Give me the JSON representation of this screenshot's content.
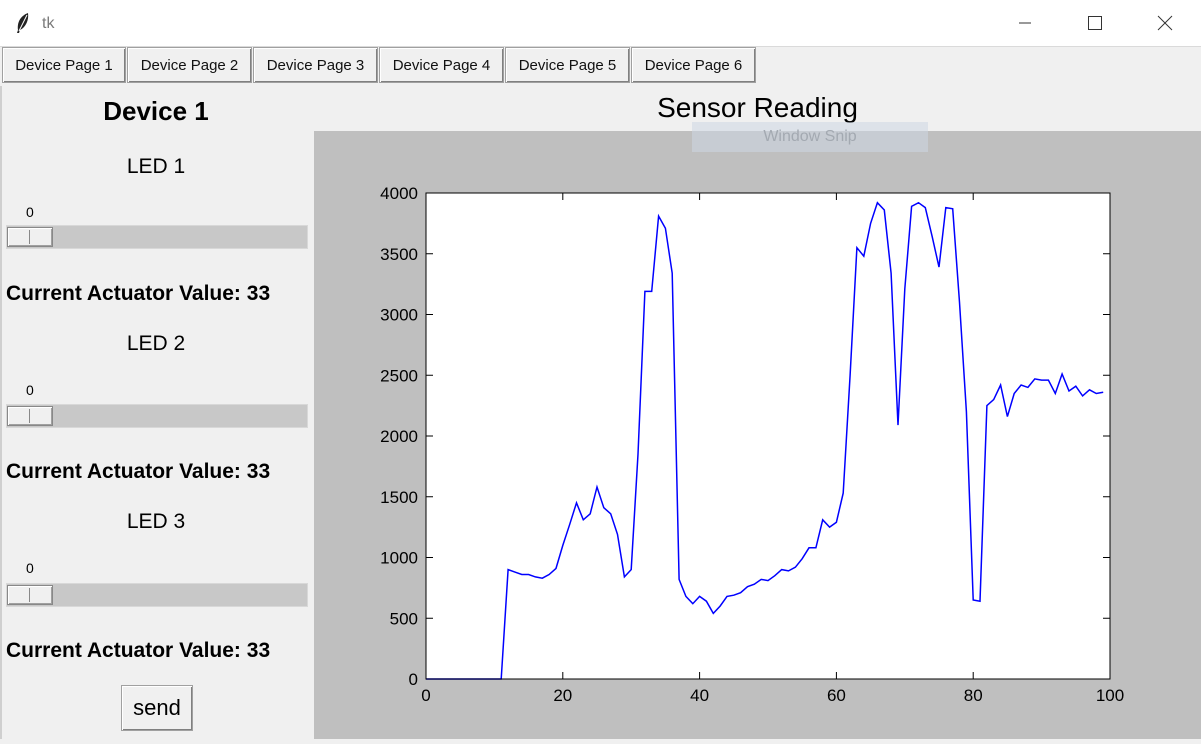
{
  "window": {
    "title": "tk",
    "controls": [
      "minimize",
      "maximize",
      "close"
    ]
  },
  "tabs": [
    {
      "label": "Device Page 1"
    },
    {
      "label": "Device Page 2"
    },
    {
      "label": "Device Page 3"
    },
    {
      "label": "Device Page 4"
    },
    {
      "label": "Device Page 5"
    },
    {
      "label": "Device Page 6"
    }
  ],
  "device": {
    "title": "Device 1",
    "leds": [
      {
        "label": "LED 1",
        "scale_value": "0",
        "actuator_text": "Current Actuator Value: 33"
      },
      {
        "label": "LED 2",
        "scale_value": "0",
        "actuator_text": "Current Actuator Value: 33"
      },
      {
        "label": "LED 3",
        "scale_value": "0",
        "actuator_text": "Current Actuator Value: 33"
      }
    ],
    "send_label": "send"
  },
  "overlay": {
    "text": "Window Snip"
  },
  "chart_data": {
    "type": "line",
    "title": "Sensor Reading",
    "xlabel": "",
    "ylabel": "",
    "xlim": [
      0,
      100
    ],
    "ylim": [
      0,
      4000
    ],
    "xticks": [
      0,
      20,
      40,
      60,
      80,
      100
    ],
    "yticks": [
      0,
      500,
      1000,
      1500,
      2000,
      2500,
      3000,
      3500,
      4000
    ],
    "grid": false,
    "color": "#0000ff",
    "x": [
      0,
      1,
      2,
      3,
      4,
      5,
      6,
      7,
      8,
      9,
      10,
      11,
      12,
      13,
      14,
      15,
      16,
      17,
      18,
      19,
      20,
      21,
      22,
      23,
      24,
      25,
      26,
      27,
      28,
      29,
      30,
      31,
      32,
      33,
      34,
      35,
      36,
      37,
      38,
      39,
      40,
      41,
      42,
      43,
      44,
      45,
      46,
      47,
      48,
      49,
      50,
      51,
      52,
      53,
      54,
      55,
      56,
      57,
      58,
      59,
      60,
      61,
      62,
      63,
      64,
      65,
      66,
      67,
      68,
      69,
      70,
      71,
      72,
      73,
      74,
      75,
      76,
      77,
      78,
      79,
      80,
      81,
      82,
      83,
      84,
      85,
      86,
      87,
      88,
      89,
      90,
      91,
      92,
      93,
      94,
      95,
      96,
      97,
      98,
      99
    ],
    "y": [
      0,
      0,
      0,
      0,
      0,
      0,
      0,
      0,
      0,
      0,
      0,
      0,
      900,
      880,
      860,
      860,
      840,
      830,
      860,
      910,
      1100,
      1270,
      1450,
      1310,
      1360,
      1580,
      1410,
      1360,
      1190,
      840,
      900,
      1850,
      3190,
      3190,
      3810,
      3710,
      3340,
      820,
      680,
      620,
      680,
      640,
      540,
      600,
      680,
      690,
      710,
      760,
      780,
      820,
      810,
      850,
      900,
      890,
      920,
      990,
      1080,
      1080,
      1310,
      1250,
      1290,
      1530,
      2500,
      3550,
      3480,
      3750,
      3920,
      3860,
      3340,
      2090,
      3210,
      3890,
      3920,
      3880,
      3640,
      3390,
      3880,
      3870,
      3100,
      2200,
      650,
      640,
      2250,
      2300,
      2420,
      2160,
      2350,
      2420,
      2400,
      2470,
      2460,
      2460,
      2350,
      2510,
      2370,
      2410,
      2330,
      2380,
      2350,
      2360
    ]
  }
}
